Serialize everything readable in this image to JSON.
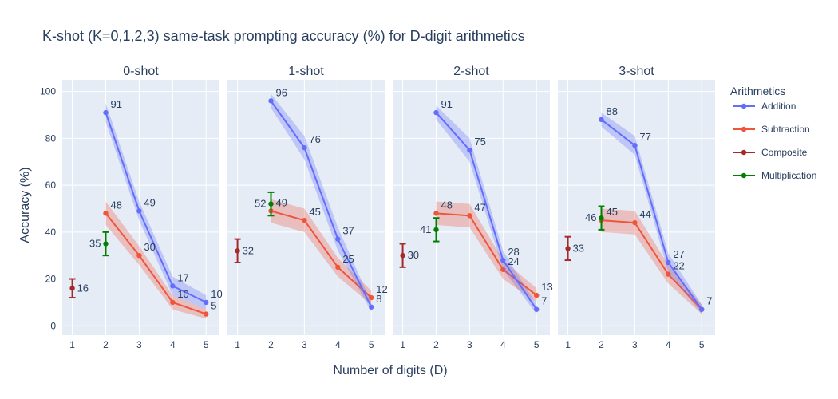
{
  "title": "K-shot (K=0,1,2,3) same-task prompting accuracy (%) for D-digit arithmetics",
  "xlabel": "Number of digits (D)",
  "ylabel": "Accuracy (%)",
  "legend": {
    "title": "Arithmetics",
    "items": [
      {
        "name": "Addition",
        "color": "#636efa"
      },
      {
        "name": "Subtraction",
        "color": "#ef553b"
      },
      {
        "name": "Composite",
        "color": "#a52a2a"
      },
      {
        "name": "Multiplication",
        "color": "#008000"
      }
    ]
  },
  "chart_data": {
    "type": "line",
    "xlim": [
      0.7,
      5.4
    ],
    "ylim": [
      -4,
      105
    ],
    "x_ticks": [
      1,
      2,
      3,
      4,
      5
    ],
    "y_ticks": [
      0,
      20,
      40,
      60,
      80,
      100
    ],
    "panels": [
      {
        "name": "0-shot",
        "series": [
          {
            "name": "Addition",
            "x": [
              2,
              3,
              4,
              5
            ],
            "y": [
              91,
              49,
              17,
              10
            ],
            "band": [
              4,
              4,
              4,
              3
            ],
            "labels": [
              "91",
              "49",
              "17",
              "10"
            ]
          },
          {
            "name": "Subtraction",
            "x": [
              2,
              3,
              4,
              5
            ],
            "y": [
              48,
              30,
              10,
              5
            ],
            "band": [
              5,
              4,
              3,
              2
            ],
            "labels": [
              "48",
              "30",
              "10",
              "5"
            ]
          },
          {
            "name": "Composite",
            "x": [
              1
            ],
            "y": [
              16
            ],
            "err": [
              4
            ],
            "labels": [
              "16"
            ]
          },
          {
            "name": "Multiplication",
            "x": [
              2
            ],
            "y": [
              35
            ],
            "err": [
              5
            ],
            "labels": [
              "35"
            ]
          }
        ]
      },
      {
        "name": "1-shot",
        "series": [
          {
            "name": "Addition",
            "x": [
              2,
              3,
              4,
              5
            ],
            "y": [
              96,
              76,
              37,
              8
            ],
            "band": [
              3,
              5,
              5,
              2
            ],
            "labels": [
              "96",
              "76",
              "37",
              "8"
            ]
          },
          {
            "name": "Subtraction",
            "x": [
              2,
              3,
              4,
              5
            ],
            "y": [
              49,
              45,
              25,
              12
            ],
            "band": [
              5,
              5,
              4,
              3
            ],
            "labels": [
              "49",
              "45",
              "25",
              "12"
            ]
          },
          {
            "name": "Composite",
            "x": [
              1
            ],
            "y": [
              32
            ],
            "err": [
              5
            ],
            "labels": [
              "32"
            ]
          },
          {
            "name": "Multiplication",
            "x": [
              2
            ],
            "y": [
              52
            ],
            "err": [
              5
            ],
            "labels": [
              "52"
            ]
          }
        ]
      },
      {
        "name": "2-shot",
        "series": [
          {
            "name": "Addition",
            "x": [
              2,
              3,
              4,
              5
            ],
            "y": [
              91,
              75,
              28,
              7
            ],
            "band": [
              3,
              5,
              4,
              2
            ],
            "labels": [
              "91",
              "75",
              "28",
              "7"
            ]
          },
          {
            "name": "Subtraction",
            "x": [
              2,
              3,
              4,
              5
            ],
            "y": [
              48,
              47,
              24,
              13
            ],
            "band": [
              5,
              5,
              4,
              3
            ],
            "labels": [
              "48",
              "47",
              "24",
              "13"
            ]
          },
          {
            "name": "Composite",
            "x": [
              1
            ],
            "y": [
              30
            ],
            "err": [
              5
            ],
            "labels": [
              "30"
            ]
          },
          {
            "name": "Multiplication",
            "x": [
              2
            ],
            "y": [
              41
            ],
            "err": [
              5
            ],
            "labels": [
              "41"
            ]
          }
        ]
      },
      {
        "name": "3-shot",
        "series": [
          {
            "name": "Addition",
            "x": [
              2,
              3,
              4,
              5
            ],
            "y": [
              88,
              77,
              27,
              7
            ],
            "band": [
              3,
              4,
              4,
              2
            ],
            "labels": [
              "88",
              "77",
              "27",
              "7"
            ]
          },
          {
            "name": "Subtraction",
            "x": [
              2,
              3,
              4,
              5
            ],
            "y": [
              45,
              44,
              22,
              7
            ],
            "band": [
              5,
              5,
              4,
              2
            ],
            "labels": [
              "45",
              "44",
              "22",
              "7"
            ]
          },
          {
            "name": "Composite",
            "x": [
              1
            ],
            "y": [
              33
            ],
            "err": [
              5
            ],
            "labels": [
              "33"
            ]
          },
          {
            "name": "Multiplication",
            "x": [
              2
            ],
            "y": [
              46
            ],
            "err": [
              5
            ],
            "labels": [
              "46"
            ]
          }
        ]
      }
    ]
  }
}
